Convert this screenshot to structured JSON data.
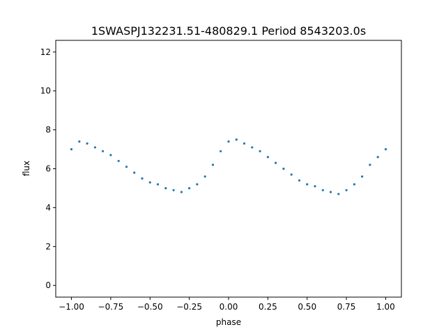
{
  "chart_data": {
    "type": "scatter",
    "title": "1SWASPJ132231.51-480829.1 Period 8543203.0s",
    "xlabel": "phase",
    "ylabel": "flux",
    "xlim": [
      -1.1,
      1.1
    ],
    "ylim": [
      -0.6,
      12.6
    ],
    "xticks": [
      -1.0,
      -0.75,
      -0.5,
      -0.25,
      0.0,
      0.25,
      0.5,
      0.75,
      1.0
    ],
    "xtick_labels": [
      "−1.00",
      "−0.75",
      "−0.50",
      "−0.25",
      "0.00",
      "0.25",
      "0.50",
      "0.75",
      "1.00"
    ],
    "yticks": [
      0,
      2,
      4,
      6,
      8,
      10,
      12
    ],
    "ytick_labels": [
      "0",
      "2",
      "4",
      "6",
      "8",
      "10",
      "12"
    ],
    "grid": false,
    "marker_color": "#1f77b4",
    "series": [
      {
        "points": [
          [
            -1.0,
            7.0
          ],
          [
            -0.95,
            7.4
          ],
          [
            -0.9,
            7.3
          ],
          [
            -0.85,
            7.1
          ],
          [
            -0.8,
            6.9
          ],
          [
            -0.75,
            6.7
          ],
          [
            -0.7,
            6.4
          ],
          [
            -0.65,
            6.1
          ],
          [
            -0.6,
            5.8
          ],
          [
            -0.55,
            5.5
          ],
          [
            -0.5,
            5.3
          ],
          [
            -0.45,
            5.2
          ],
          [
            -0.4,
            5.0
          ],
          [
            -0.35,
            4.9
          ],
          [
            -0.3,
            4.8
          ],
          [
            -0.25,
            5.0
          ],
          [
            -0.2,
            5.2
          ],
          [
            -0.15,
            5.6
          ],
          [
            -0.1,
            6.2
          ],
          [
            -0.05,
            6.9
          ],
          [
            0.0,
            7.4
          ],
          [
            0.05,
            7.5
          ],
          [
            0.1,
            7.3
          ],
          [
            0.15,
            7.1
          ],
          [
            0.2,
            6.9
          ],
          [
            0.25,
            6.6
          ],
          [
            0.3,
            6.3
          ],
          [
            0.35,
            6.0
          ],
          [
            0.4,
            5.7
          ],
          [
            0.45,
            5.4
          ],
          [
            0.5,
            5.2
          ],
          [
            0.55,
            5.1
          ],
          [
            0.6,
            4.9
          ],
          [
            0.65,
            4.8
          ],
          [
            0.7,
            4.7
          ],
          [
            0.75,
            4.9
          ],
          [
            0.8,
            5.2
          ],
          [
            0.85,
            5.6
          ],
          [
            0.9,
            6.2
          ],
          [
            0.95,
            6.6
          ],
          [
            1.0,
            7.0
          ]
        ]
      }
    ]
  }
}
